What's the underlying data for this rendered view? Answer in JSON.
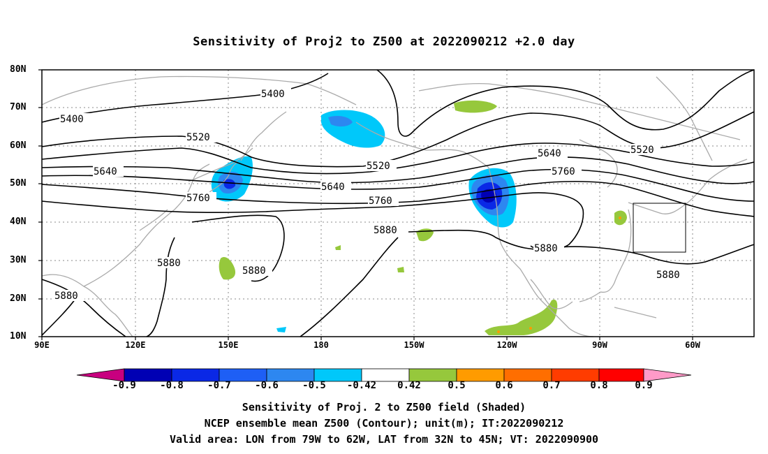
{
  "title": "Sensitivity of Proj2 to Z500 at 2022090212 +2.0 day",
  "lat_labels": [
    "80N",
    "70N",
    "60N",
    "50N",
    "40N",
    "30N",
    "20N",
    "10N"
  ],
  "lon_labels": [
    "90E",
    "120E",
    "150E",
    "180",
    "150W",
    "120W",
    "90W",
    "60W"
  ],
  "contour_labels": [
    "5400",
    "5400",
    "5520",
    "5520",
    "5520",
    "5640",
    "5640",
    "5640",
    "5760",
    "5760",
    "5760",
    "5880",
    "5880",
    "5880",
    "5880",
    "5880",
    "5880"
  ],
  "colorbar": {
    "labels": [
      "-0.9",
      "-0.8",
      "-0.7",
      "-0.6",
      "-0.5",
      "-0.42",
      "0.42",
      "0.5",
      "0.6",
      "0.7",
      "0.8",
      "0.9"
    ],
    "colors": [
      "#c8007f",
      "#0000b4",
      "#0a28e6",
      "#1e5ff5",
      "#2d87f0",
      "#00c8fa",
      "#ffffff",
      "#96c83c",
      "#ff9b00",
      "#ff6e00",
      "#ff3c00",
      "#ff0000",
      "#ff9ac8"
    ]
  },
  "caption": {
    "line1": "Sensitivity of Proj. 2 to Z500 field (Shaded)",
    "line2": "NCEP ensemble mean Z500 (Contour); unit(m); IT:2022090212",
    "line3": "Valid area: LON from 79W to 62W, LAT from 32N to 45N; VT: 2022090900"
  }
}
